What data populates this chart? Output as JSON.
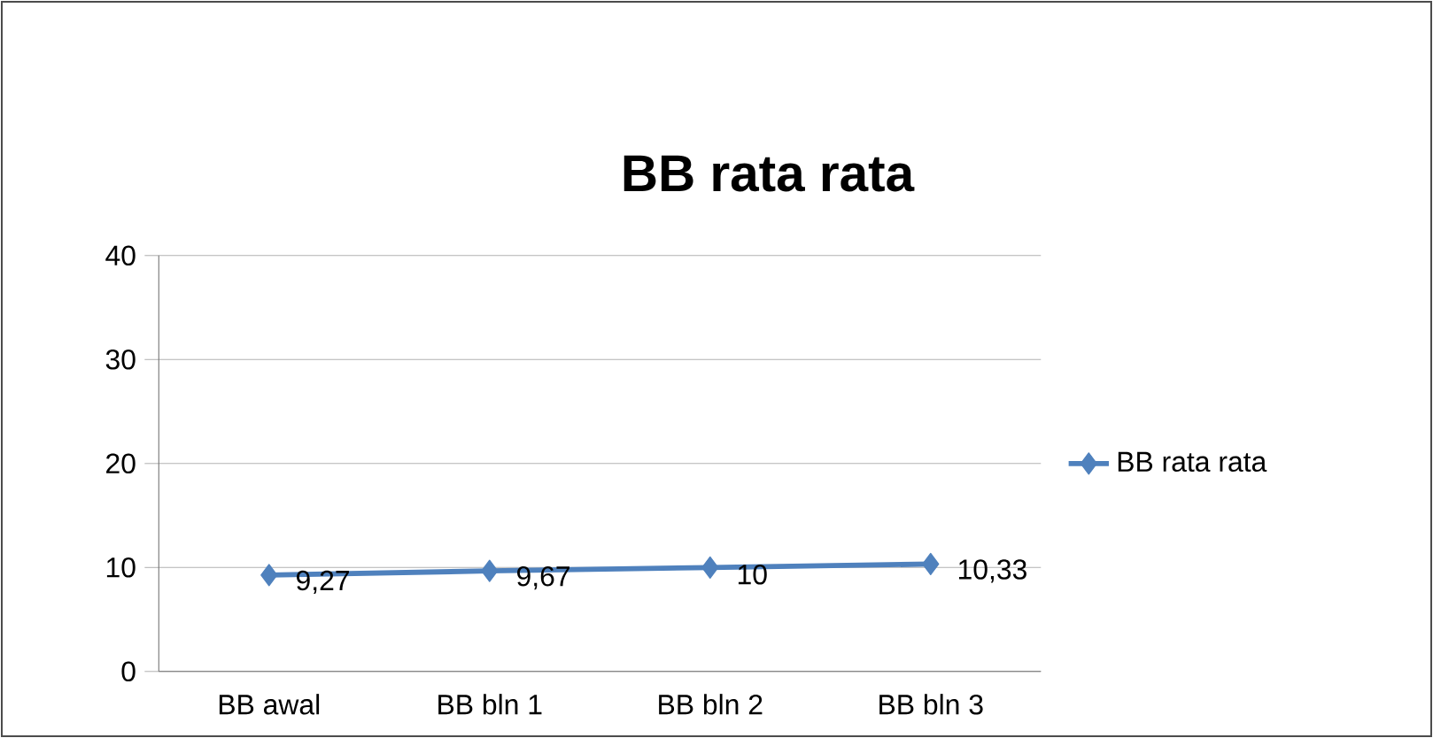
{
  "chart_data": {
    "type": "line",
    "title": "BB rata rata",
    "categories": [
      "BB awal",
      "BB bln 1",
      "BB bln 2",
      "BB bln 3"
    ],
    "series": [
      {
        "name": "BB rata rata",
        "color": "#4f81bd",
        "values": [
          9.27,
          9.67,
          10,
          10.33
        ],
        "value_labels": [
          "9,27",
          "9,67",
          "10",
          "10,33"
        ]
      }
    ],
    "ylim": [
      0,
      40
    ],
    "yticks": [
      0,
      10,
      20,
      30,
      40
    ],
    "grid": "y",
    "legend": "right",
    "marker": "diamond",
    "line_style": "solid"
  }
}
